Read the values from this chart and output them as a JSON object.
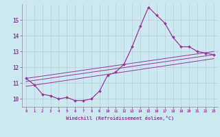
{
  "xlabel": "Windchill (Refroidissement éolien,°C)",
  "background_color": "#cce8f0",
  "line_color": "#993399",
  "grid_color": "#b8ccd8",
  "x_data": [
    0,
    1,
    2,
    3,
    4,
    5,
    6,
    7,
    8,
    9,
    10,
    11,
    12,
    13,
    14,
    15,
    16,
    17,
    18,
    19,
    20,
    21,
    22,
    23
  ],
  "series1": [
    11.3,
    10.9,
    10.3,
    10.2,
    10.0,
    10.1,
    9.9,
    9.9,
    10.0,
    10.5,
    11.5,
    11.7,
    12.2,
    13.3,
    14.6,
    15.8,
    15.3,
    14.8,
    13.9,
    13.3,
    13.3,
    13.0,
    12.9,
    12.8
  ],
  "straight1_start": 11.3,
  "straight1_end": 13.0,
  "straight2_start": 11.1,
  "straight2_end": 12.8,
  "straight3_start": 10.8,
  "straight3_end": 12.55,
  "ylim": [
    9.5,
    16.0
  ],
  "xlim": [
    -0.5,
    23.5
  ],
  "yticks": [
    10,
    11,
    12,
    13,
    14,
    15
  ],
  "xticks": [
    0,
    1,
    2,
    3,
    4,
    5,
    6,
    7,
    8,
    9,
    10,
    11,
    12,
    13,
    14,
    15,
    16,
    17,
    18,
    19,
    20,
    21,
    22,
    23
  ]
}
